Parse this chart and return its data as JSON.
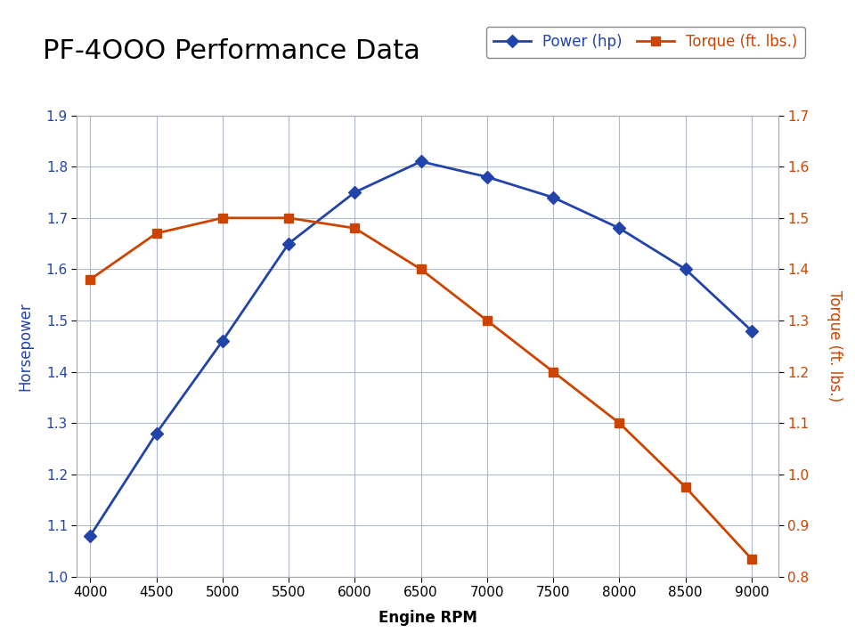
{
  "title": "PF-4OOO Performance Data",
  "xlabel": "Engine RPM",
  "ylabel_left": "Horsepower",
  "ylabel_right": "Torque (ft. lbs.)",
  "rpm": [
    4000,
    4500,
    5000,
    5500,
    6000,
    6500,
    7000,
    7500,
    8000,
    8500,
    9000
  ],
  "power_hp": [
    1.08,
    1.28,
    1.46,
    1.65,
    1.75,
    1.81,
    1.78,
    1.74,
    1.68,
    1.6,
    1.48
  ],
  "torque_ftlbs": [
    1.38,
    1.47,
    1.5,
    1.5,
    1.48,
    1.4,
    1.3,
    1.2,
    1.1,
    0.975,
    0.835
  ],
  "power_color": "#2244aa",
  "torque_color": "#cc4400",
  "ylim_left": [
    1.0,
    1.9
  ],
  "ylim_right": [
    0.8,
    1.7
  ],
  "yticks_left": [
    1.0,
    1.1,
    1.2,
    1.3,
    1.4,
    1.5,
    1.6,
    1.7,
    1.8,
    1.9
  ],
  "yticks_right": [
    0.8,
    0.9,
    1.0,
    1.1,
    1.2,
    1.3,
    1.4,
    1.5,
    1.6,
    1.7
  ],
  "xticks": [
    4000,
    4500,
    5000,
    5500,
    6000,
    6500,
    7000,
    7500,
    8000,
    8500,
    9000
  ],
  "background_color": "#ffffff",
  "grid_color": "#b0b8cc",
  "legend_power": "Power (hp)",
  "legend_torque": "Torque (ft. lbs.)",
  "title_fontsize": 22,
  "axis_label_fontsize": 12,
  "tick_fontsize": 11
}
